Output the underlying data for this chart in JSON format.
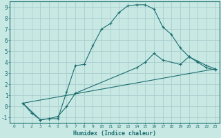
{
  "xlabel": "Humidex (Indice chaleur)",
  "xlim": [
    -0.5,
    23.5
  ],
  "ylim": [
    -1.5,
    9.5
  ],
  "yticks": [
    -1,
    0,
    1,
    2,
    3,
    4,
    5,
    6,
    7,
    8,
    9
  ],
  "xticks": [
    0,
    1,
    2,
    3,
    4,
    5,
    6,
    7,
    8,
    9,
    10,
    11,
    12,
    13,
    14,
    15,
    16,
    17,
    18,
    19,
    20,
    21,
    22,
    23
  ],
  "background_color": "#c8e8e4",
  "line_color": "#1a6e6e",
  "grid_color": "#aacece",
  "lines": [
    {
      "x": [
        1,
        2,
        3,
        4,
        5,
        6,
        7,
        8,
        9,
        10,
        11,
        12,
        13,
        14,
        15,
        16,
        17,
        18,
        19,
        20,
        21,
        22,
        23
      ],
      "y": [
        0.3,
        -0.6,
        -1.2,
        -1.1,
        -1.1,
        1.3,
        3.7,
        3.8,
        5.5,
        7.0,
        7.5,
        8.5,
        9.1,
        9.2,
        9.2,
        8.8,
        7.2,
        6.5,
        5.3,
        4.5,
        4.1,
        3.7,
        3.4
      ],
      "marker": true
    },
    {
      "x": [
        1,
        3,
        4,
        5,
        6,
        7,
        14,
        15,
        16,
        17,
        19,
        20,
        21,
        22,
        23
      ],
      "y": [
        0.3,
        -1.2,
        -1.1,
        -0.9,
        0.0,
        1.2,
        3.5,
        4.0,
        4.8,
        4.2,
        3.8,
        4.5,
        4.0,
        3.5,
        3.3
      ],
      "marker": true
    },
    {
      "x": [
        1,
        23
      ],
      "y": [
        0.3,
        3.4
      ],
      "marker": false
    }
  ],
  "xlabel_fontsize": 6,
  "tick_fontsize_x": 4.5,
  "tick_fontsize_y": 5.5
}
